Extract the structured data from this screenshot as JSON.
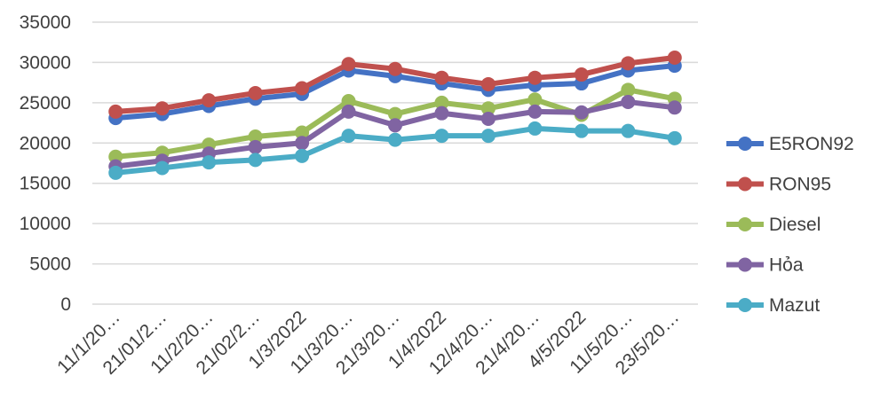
{
  "chart_data": {
    "type": "line",
    "categories": [
      "11/1/20…",
      "21/01/2…",
      "11/2/20…",
      "21/02/2…",
      "1/3/2022",
      "11/3/20…",
      "21/3/20…",
      "1/4/2022",
      "12/4/20…",
      "21/4/20…",
      "4/5/2022",
      "11/5/20…",
      "23/5/20…"
    ],
    "yticks": [
      "0",
      "5000",
      "10000",
      "15000",
      "20000",
      "25000",
      "30000",
      "35000"
    ],
    "ylim": [
      0,
      35000
    ],
    "grid": true,
    "legend_position": "right",
    "series": [
      {
        "name": "E5RON92",
        "color": "#4472C4",
        "values": [
          23100,
          23600,
          24600,
          25500,
          26100,
          29000,
          28300,
          27400,
          26600,
          27200,
          27400,
          29000,
          29600
        ]
      },
      {
        "name": "RON95",
        "color": "#C0504D",
        "values": [
          23900,
          24300,
          25300,
          26200,
          26800,
          29800,
          29200,
          28100,
          27300,
          28100,
          28500,
          29900,
          30600
        ]
      },
      {
        "name": "Diesel",
        "color": "#9BBB59",
        "values": [
          18300,
          18800,
          19800,
          20800,
          21300,
          25200,
          23600,
          25000,
          24300,
          25400,
          23500,
          26600,
          25500
        ]
      },
      {
        "name": "Hỏa",
        "color": "#8064A2",
        "values": [
          17100,
          17800,
          18700,
          19500,
          20000,
          23900,
          22200,
          23700,
          23000,
          23900,
          23800,
          25100,
          24400
        ]
      },
      {
        "name": "Mazut",
        "color": "#4BACC6",
        "values": [
          16300,
          16900,
          17600,
          17900,
          18400,
          20900,
          20400,
          20900,
          20900,
          21800,
          21500,
          21500,
          20600
        ]
      }
    ]
  }
}
